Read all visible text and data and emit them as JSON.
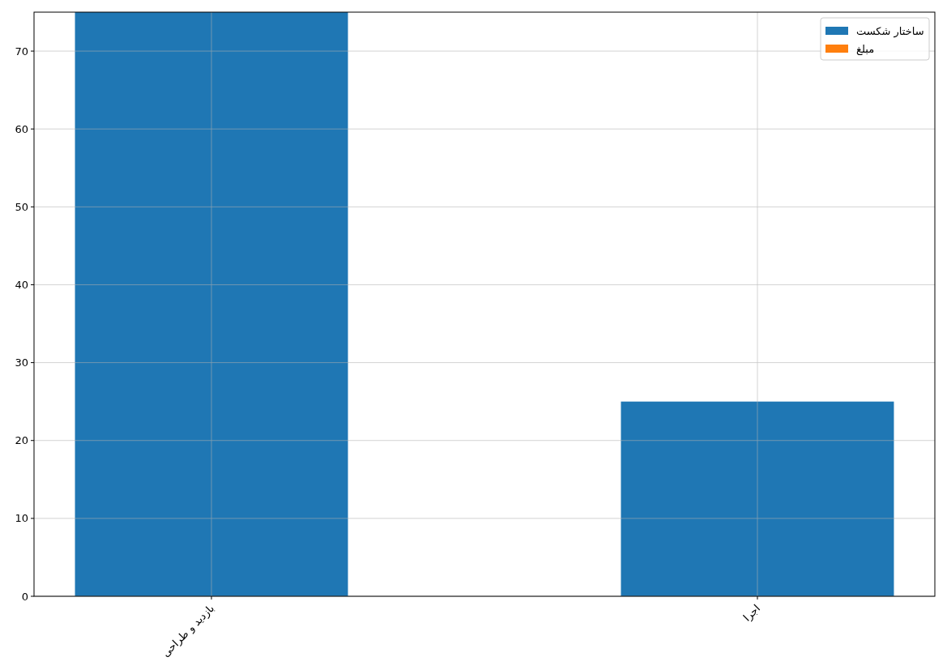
{
  "chart_data": {
    "type": "bar",
    "categories": [
      "بازدید و طراحی",
      "اجرا"
    ],
    "series": [
      {
        "name": "ساختار شکست",
        "color": "#1f77b4",
        "values": [
          75,
          25
        ]
      },
      {
        "name": "مبلغ",
        "color": "#ff7f0e",
        "values": [
          null,
          null
        ]
      }
    ],
    "ylim": [
      0,
      75
    ],
    "yticks": [
      0,
      10,
      20,
      30,
      40,
      50,
      60,
      70
    ],
    "grid": true,
    "legend": "top right"
  }
}
